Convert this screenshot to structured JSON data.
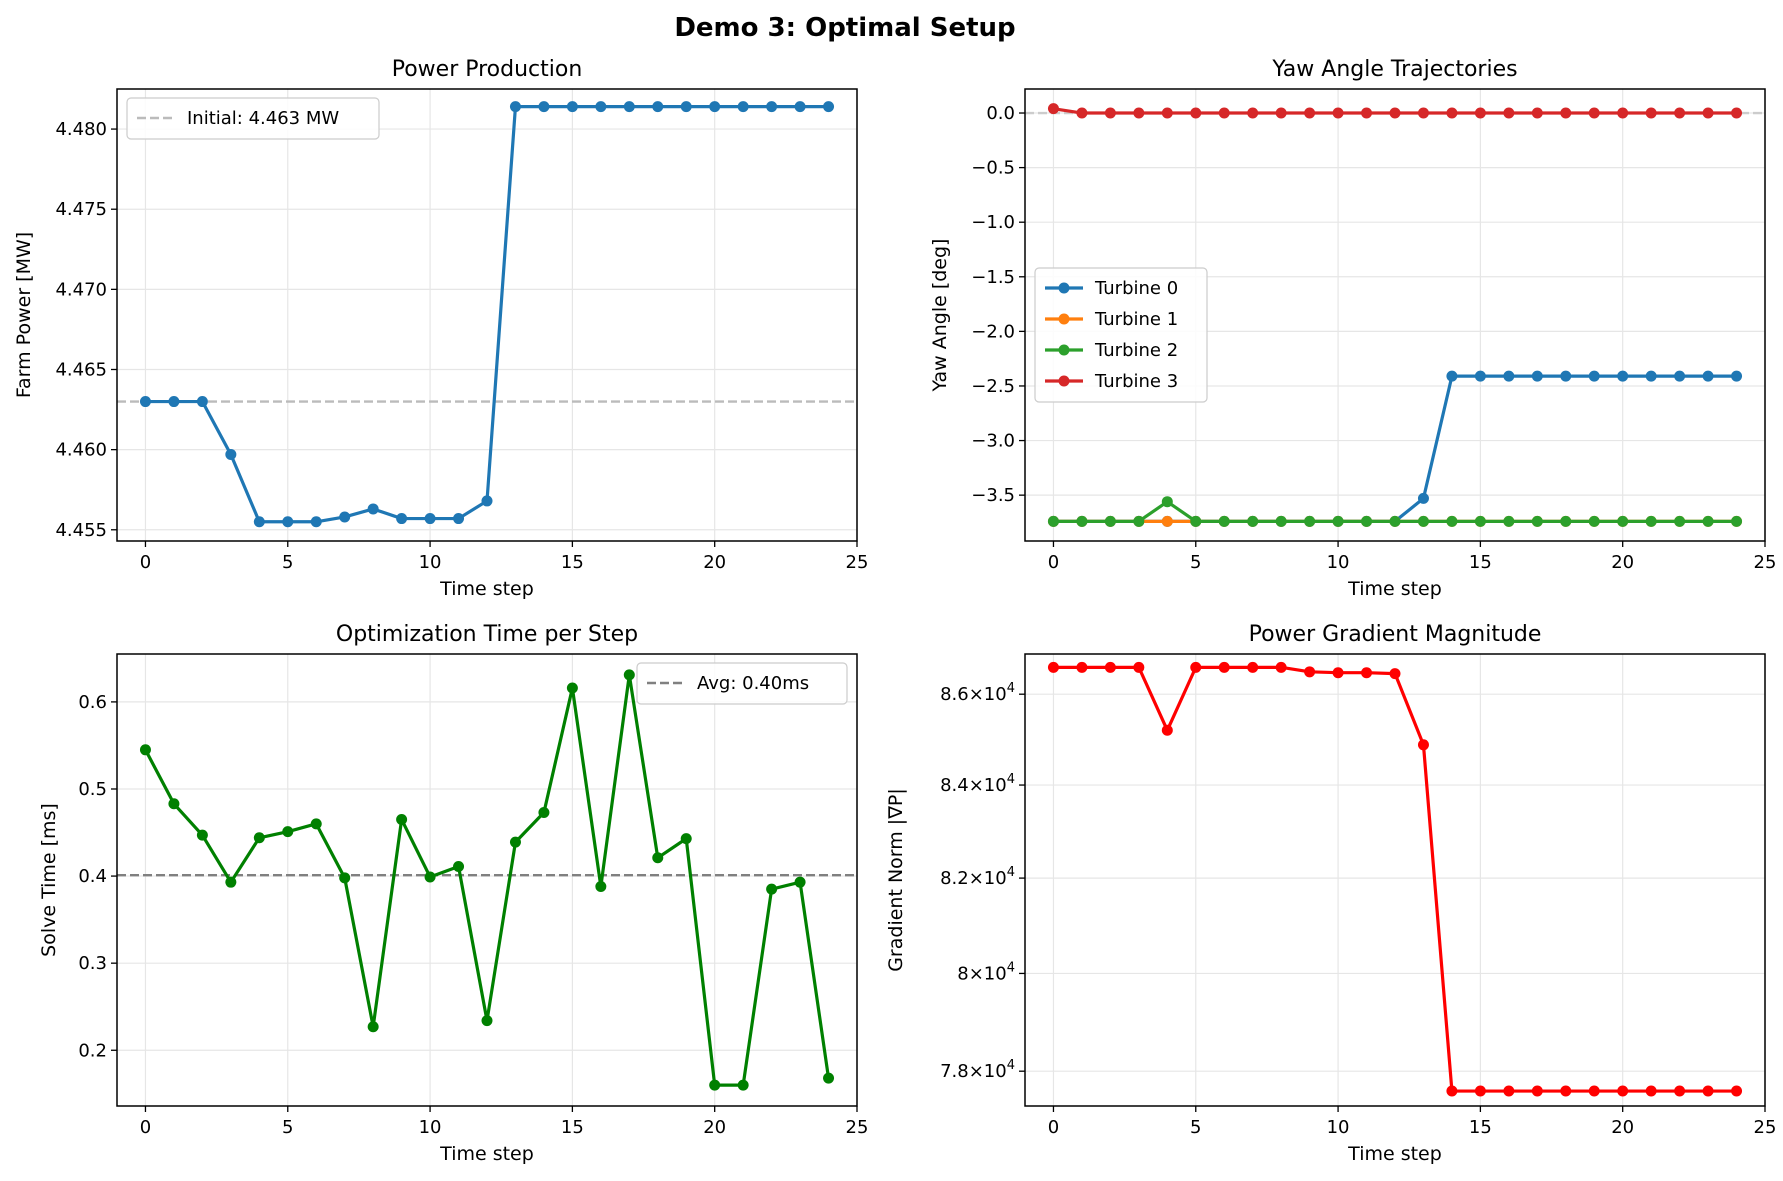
{
  "figure": {
    "title": "Demo 3: Optimal Setup"
  },
  "chart_data": [
    {
      "type": "line",
      "title": "Power Production",
      "xlabel": "Time step",
      "ylabel": "Farm Power [MW]",
      "xlim": [
        -1,
        25
      ],
      "ylim": [
        4.4543,
        4.4825
      ],
      "xticks": [
        0,
        5,
        10,
        15,
        20,
        25
      ],
      "yticks": [
        4.455,
        4.46,
        4.465,
        4.47,
        4.475,
        4.48
      ],
      "ytick_labels": [
        "4.455",
        "4.460",
        "4.465",
        "4.470",
        "4.475",
        "4.480"
      ],
      "grid": true,
      "legend": "upper-left",
      "hline": {
        "y": 4.463,
        "label": "Initial: 4.463 MW",
        "color": "#bbbbbb",
        "style": "dashed"
      },
      "series": [
        {
          "color": "#1f77b4",
          "marker": "circle",
          "x": [
            0,
            1,
            2,
            3,
            4,
            5,
            6,
            7,
            8,
            9,
            10,
            11,
            12,
            13,
            14,
            15,
            16,
            17,
            18,
            19,
            20,
            21,
            22,
            23,
            24
          ],
          "values": [
            4.463,
            4.463,
            4.463,
            4.4597,
            4.4555,
            4.4555,
            4.4555,
            4.4558,
            4.4563,
            4.4557,
            4.4557,
            4.4557,
            4.4568,
            4.4814,
            4.4814,
            4.4814,
            4.4814,
            4.4814,
            4.4814,
            4.4814,
            4.4814,
            4.4814,
            4.4814,
            4.4814,
            4.4814
          ]
        }
      ]
    },
    {
      "type": "line",
      "title": "Yaw Angle Trajectories",
      "xlabel": "Time step",
      "ylabel": "Yaw Angle [deg]",
      "xlim": [
        -1,
        25
      ],
      "ylim": [
        -3.92,
        0.22
      ],
      "xticks": [
        0,
        5,
        10,
        15,
        20,
        25
      ],
      "yticks": [
        0,
        -0.5,
        -1,
        -1.5,
        -2,
        -2.5,
        -3,
        -3.5
      ],
      "ytick_labels": [
        "0.0",
        "−0.5",
        "−1.0",
        "−1.5",
        "−2.0",
        "−2.5",
        "−3.0",
        "−3.5"
      ],
      "grid": true,
      "legend": "center-left",
      "hline": {
        "y": 0,
        "color": "#cccccc",
        "style": "dashed"
      },
      "series": [
        {
          "name": "Turbine 0",
          "color": "#1f77b4",
          "marker": "circle",
          "x": [
            0,
            1,
            2,
            3,
            4,
            5,
            6,
            7,
            8,
            9,
            10,
            11,
            12,
            13,
            14,
            15,
            16,
            17,
            18,
            19,
            20,
            21,
            22,
            23,
            24
          ],
          "values": [
            -3.74,
            -3.74,
            -3.74,
            -3.74,
            -3.74,
            -3.74,
            -3.74,
            -3.74,
            -3.74,
            -3.74,
            -3.74,
            -3.74,
            -3.74,
            -3.53,
            -2.41,
            -2.41,
            -2.41,
            -2.41,
            -2.41,
            -2.41,
            -2.41,
            -2.41,
            -2.41,
            -2.41,
            -2.41
          ]
        },
        {
          "name": "Turbine 1",
          "color": "#ff7f0e",
          "marker": "circle",
          "x": [
            0,
            1,
            2,
            3,
            4,
            5,
            6,
            7,
            8,
            9,
            10,
            11,
            12,
            13,
            14,
            15,
            16,
            17,
            18,
            19,
            20,
            21,
            22,
            23,
            24
          ],
          "values": [
            -3.74,
            -3.74,
            -3.74,
            -3.74,
            -3.74,
            -3.74,
            -3.74,
            -3.74,
            -3.74,
            -3.74,
            -3.74,
            -3.74,
            -3.74,
            -3.74,
            -3.74,
            -3.74,
            -3.74,
            -3.74,
            -3.74,
            -3.74,
            -3.74,
            -3.74,
            -3.74,
            -3.74,
            -3.74
          ]
        },
        {
          "name": "Turbine 2",
          "color": "#2ca02c",
          "marker": "circle",
          "x": [
            0,
            1,
            2,
            3,
            4,
            5,
            6,
            7,
            8,
            9,
            10,
            11,
            12,
            13,
            14,
            15,
            16,
            17,
            18,
            19,
            20,
            21,
            22,
            23,
            24
          ],
          "values": [
            -3.74,
            -3.74,
            -3.74,
            -3.74,
            -3.56,
            -3.74,
            -3.74,
            -3.74,
            -3.74,
            -3.74,
            -3.74,
            -3.74,
            -3.74,
            -3.74,
            -3.74,
            -3.74,
            -3.74,
            -3.74,
            -3.74,
            -3.74,
            -3.74,
            -3.74,
            -3.74,
            -3.74,
            -3.74
          ]
        },
        {
          "name": "Turbine 3",
          "color": "#d62728",
          "marker": "circle",
          "x": [
            0,
            1,
            2,
            3,
            4,
            5,
            6,
            7,
            8,
            9,
            10,
            11,
            12,
            13,
            14,
            15,
            16,
            17,
            18,
            19,
            20,
            21,
            22,
            23,
            24
          ],
          "values": [
            0.04,
            0,
            0,
            0,
            0,
            0,
            0,
            0,
            0,
            0,
            0,
            0,
            0,
            0,
            0,
            0,
            0,
            0,
            0,
            0,
            0,
            0,
            0,
            0,
            0
          ]
        }
      ]
    },
    {
      "type": "line",
      "title": "Optimization Time per Step",
      "xlabel": "Time step",
      "ylabel": "Solve Time [ms]",
      "xlim": [
        -1,
        25
      ],
      "ylim": [
        0.136,
        0.655
      ],
      "xticks": [
        0,
        5,
        10,
        15,
        20,
        25
      ],
      "yticks": [
        0.2,
        0.3,
        0.4,
        0.5,
        0.6
      ],
      "ytick_labels": [
        "0.2",
        "0.3",
        "0.4",
        "0.5",
        "0.6"
      ],
      "grid": true,
      "legend": "upper-right",
      "hline": {
        "y": 0.401,
        "label": "Avg: 0.40ms",
        "color": "#808080",
        "style": "dashed"
      },
      "series": [
        {
          "color": "#008000",
          "marker": "circle",
          "x": [
            0,
            1,
            2,
            3,
            4,
            5,
            6,
            7,
            8,
            9,
            10,
            11,
            12,
            13,
            14,
            15,
            16,
            17,
            18,
            19,
            20,
            21,
            22,
            23,
            24
          ],
          "values": [
            0.545,
            0.483,
            0.447,
            0.393,
            0.444,
            0.451,
            0.46,
            0.398,
            0.227,
            0.465,
            0.399,
            0.411,
            0.234,
            0.439,
            0.473,
            0.616,
            0.388,
            0.631,
            0.421,
            0.443,
            0.16,
            0.16,
            0.385,
            0.393,
            0.168
          ]
        }
      ]
    },
    {
      "type": "line",
      "title": "Power Gradient Magnitude",
      "xlabel": "Time step",
      "ylabel": "Gradient Norm |∇P|",
      "xlim": [
        -1,
        25
      ],
      "ylim": [
        77300,
        86900
      ],
      "yscale": "log",
      "xticks": [
        0,
        5,
        10,
        15,
        20,
        25
      ],
      "yticks": [
        78000,
        80000,
        82000,
        84000,
        86000
      ],
      "ytick_mantissas": [
        "7.8",
        "8",
        "8.2",
        "8.4",
        "8.6"
      ],
      "ytick_base": "10",
      "ytick_exponent": "4",
      "grid": true,
      "series": [
        {
          "color": "#ff0000",
          "marker": "circle",
          "x": [
            0,
            1,
            2,
            3,
            4,
            5,
            6,
            7,
            8,
            9,
            10,
            11,
            12,
            13,
            14,
            15,
            16,
            17,
            18,
            19,
            20,
            21,
            22,
            23,
            24
          ],
          "values": [
            86600,
            86600,
            86600,
            86600,
            85200,
            86600,
            86600,
            86600,
            86600,
            86500,
            86480,
            86480,
            86460,
            84880,
            77600,
            77600,
            77600,
            77600,
            77600,
            77600,
            77600,
            77600,
            77600,
            77600,
            77600
          ]
        }
      ]
    }
  ]
}
